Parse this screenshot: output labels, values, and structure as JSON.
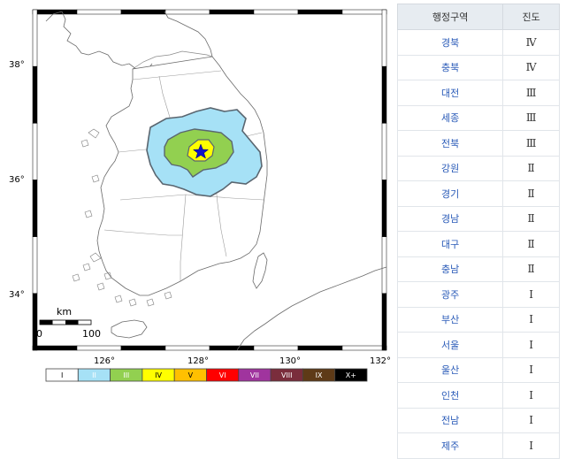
{
  "map": {
    "lat_labels": [
      {
        "label": "38°",
        "lat": 38
      },
      {
        "label": "36°",
        "lat": 36
      },
      {
        "label": "34°",
        "lat": 34
      }
    ],
    "lon_labels": [
      {
        "label": "126°",
        "lon": 126
      },
      {
        "label": "128°",
        "lon": 128
      },
      {
        "label": "130°",
        "lon": 130
      },
      {
        "label": "132°",
        "lon": 132
      }
    ],
    "epicenter_icon": "star-icon",
    "scalebar": {
      "unit": "km",
      "start": "0",
      "end": "100"
    }
  },
  "legend": [
    {
      "label": "I",
      "color": "#ffffff",
      "text_color": "#000000"
    },
    {
      "label": "II",
      "color": "#a6e1f6",
      "text_color": "#ffffff"
    },
    {
      "label": "III",
      "color": "#92d050",
      "text_color": "#ffffff"
    },
    {
      "label": "IV",
      "color": "#ffff00",
      "text_color": "#000000"
    },
    {
      "label": "V",
      "color": "#ffc000",
      "text_color": "#000000"
    },
    {
      "label": "VI",
      "color": "#ff0000",
      "text_color": "#ffffff"
    },
    {
      "label": "VII",
      "color": "#a0349e",
      "text_color": "#ffffff"
    },
    {
      "label": "VIII",
      "color": "#7a2d3c",
      "text_color": "#ffffff"
    },
    {
      "label": "IX",
      "color": "#5e3a17",
      "text_color": "#ffffff"
    },
    {
      "label": "X+",
      "color": "#000000",
      "text_color": "#ffffff"
    }
  ],
  "table": {
    "headers": [
      "행정구역",
      "진도"
    ],
    "rows": [
      {
        "region": "경북",
        "level": "Ⅳ"
      },
      {
        "region": "충북",
        "level": "Ⅳ"
      },
      {
        "region": "대전",
        "level": "Ⅲ"
      },
      {
        "region": "세종",
        "level": "Ⅲ"
      },
      {
        "region": "전북",
        "level": "Ⅲ"
      },
      {
        "region": "강원",
        "level": "Ⅱ"
      },
      {
        "region": "경기",
        "level": "Ⅱ"
      },
      {
        "region": "경남",
        "level": "Ⅱ"
      },
      {
        "region": "대구",
        "level": "Ⅱ"
      },
      {
        "region": "충남",
        "level": "Ⅱ"
      },
      {
        "region": "광주",
        "level": "Ⅰ"
      },
      {
        "region": "부산",
        "level": "Ⅰ"
      },
      {
        "region": "서울",
        "level": "Ⅰ"
      },
      {
        "region": "울산",
        "level": "Ⅰ"
      },
      {
        "region": "인천",
        "level": "Ⅰ"
      },
      {
        "region": "전남",
        "level": "Ⅰ"
      },
      {
        "region": "제주",
        "level": "Ⅰ"
      }
    ]
  }
}
